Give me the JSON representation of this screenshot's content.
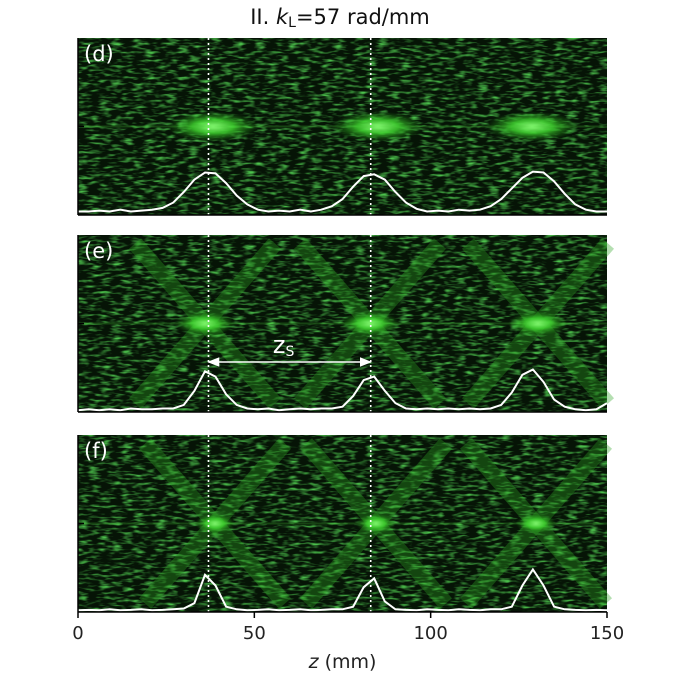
{
  "chart_data": [
    {
      "type": "line",
      "title": [
        "II. ",
        "k",
        "L",
        "=57 rad/mm"
      ],
      "label": "(d)",
      "x": [
        0,
        3,
        6,
        9,
        12,
        15,
        18,
        21,
        24,
        27,
        30,
        33,
        36,
        39,
        42,
        45,
        48,
        51,
        54,
        57,
        60,
        63,
        66,
        69,
        72,
        75,
        78,
        81,
        84,
        87,
        90,
        93,
        96,
        99,
        102,
        105,
        108,
        111,
        114,
        117,
        120,
        123,
        126,
        129,
        132,
        135,
        138,
        141,
        144,
        147,
        150
      ],
      "values": [
        0.02,
        0.02,
        0.025,
        0.02,
        0.03,
        0.02,
        0.025,
        0.03,
        0.04,
        0.07,
        0.13,
        0.2,
        0.24,
        0.235,
        0.18,
        0.11,
        0.06,
        0.03,
        0.02,
        0.025,
        0.02,
        0.03,
        0.02,
        0.03,
        0.05,
        0.09,
        0.16,
        0.22,
        0.23,
        0.2,
        0.13,
        0.07,
        0.035,
        0.02,
        0.025,
        0.02,
        0.03,
        0.025,
        0.03,
        0.05,
        0.09,
        0.15,
        0.21,
        0.245,
        0.24,
        0.19,
        0.12,
        0.06,
        0.03,
        0.02,
        0.02
      ],
      "color": "#ffffff",
      "xlim": [
        0,
        150
      ],
      "ylim": [
        0,
        1
      ],
      "vlines": [
        37,
        83
      ]
    },
    {
      "type": "line",
      "label": "(e)",
      "x": [
        0,
        3,
        6,
        9,
        12,
        15,
        18,
        21,
        24,
        27,
        30,
        33,
        36,
        39,
        42,
        45,
        48,
        51,
        54,
        57,
        60,
        63,
        66,
        69,
        72,
        75,
        78,
        81,
        84,
        87,
        90,
        93,
        96,
        99,
        102,
        105,
        108,
        111,
        114,
        117,
        120,
        123,
        126,
        129,
        132,
        135,
        138,
        141,
        144,
        147,
        150
      ],
      "values": [
        0.01,
        0.015,
        0.01,
        0.015,
        0.01,
        0.02,
        0.015,
        0.015,
        0.02,
        0.02,
        0.04,
        0.12,
        0.23,
        0.2,
        0.1,
        0.04,
        0.02,
        0.015,
        0.02,
        0.01,
        0.015,
        0.02,
        0.015,
        0.02,
        0.02,
        0.03,
        0.09,
        0.18,
        0.2,
        0.12,
        0.05,
        0.02,
        0.015,
        0.02,
        0.015,
        0.02,
        0.015,
        0.02,
        0.015,
        0.02,
        0.04,
        0.11,
        0.21,
        0.24,
        0.17,
        0.07,
        0.03,
        0.015,
        0.01,
        0.015,
        0.05
      ],
      "color": "#ffffff",
      "xlim": [
        0,
        150
      ],
      "ylim": [
        0,
        1
      ],
      "vlines": [
        37,
        83
      ],
      "annotation": [
        "z",
        "S"
      ]
    },
    {
      "type": "line",
      "label": "(f)",
      "x": [
        0,
        3,
        6,
        9,
        12,
        15,
        18,
        21,
        24,
        27,
        30,
        33,
        36,
        39,
        42,
        45,
        48,
        51,
        54,
        57,
        60,
        63,
        66,
        69,
        72,
        75,
        78,
        81,
        84,
        87,
        90,
        93,
        96,
        99,
        102,
        105,
        108,
        111,
        114,
        117,
        120,
        123,
        126,
        129,
        132,
        135,
        138,
        141,
        144,
        147,
        150
      ],
      "values": [
        0.01,
        0.012,
        0.01,
        0.015,
        0.01,
        0.012,
        0.015,
        0.01,
        0.012,
        0.015,
        0.02,
        0.05,
        0.21,
        0.15,
        0.03,
        0.015,
        0.01,
        0.012,
        0.015,
        0.01,
        0.012,
        0.015,
        0.01,
        0.012,
        0.015,
        0.015,
        0.03,
        0.14,
        0.19,
        0.06,
        0.015,
        0.012,
        0.01,
        0.015,
        0.012,
        0.01,
        0.015,
        0.012,
        0.01,
        0.015,
        0.015,
        0.03,
        0.15,
        0.24,
        0.15,
        0.03,
        0.015,
        0.012,
        0.01,
        0.012,
        0.01
      ],
      "color": "#ffffff",
      "xlim": [
        0,
        150
      ],
      "ylim": [
        0,
        1
      ],
      "vlines": [
        37,
        83
      ],
      "xticks": [
        0,
        50,
        100,
        150
      ],
      "xlabel": [
        "z",
        " (mm)"
      ]
    }
  ]
}
